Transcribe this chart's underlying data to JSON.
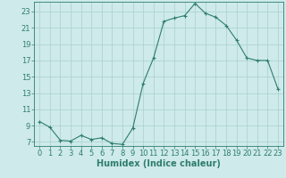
{
  "x": [
    0,
    1,
    2,
    3,
    4,
    5,
    6,
    7,
    8,
    9,
    10,
    11,
    12,
    13,
    14,
    15,
    16,
    17,
    18,
    19,
    20,
    21,
    22,
    23
  ],
  "y": [
    9.5,
    8.8,
    7.2,
    7.1,
    7.8,
    7.3,
    7.5,
    6.8,
    6.7,
    8.7,
    14.2,
    17.3,
    21.8,
    22.2,
    22.5,
    24.0,
    22.8,
    22.3,
    21.3,
    19.5,
    17.3,
    17.0,
    17.0,
    13.5
  ],
  "line_color": "#2e7d6e",
  "marker": "+",
  "marker_size": 3,
  "bg_color": "#ceeaea",
  "grid_color": "#aacfcf",
  "xlabel": "Humidex (Indice chaleur)",
  "xlim": [
    -0.5,
    23.5
  ],
  "ylim": [
    6.5,
    24.2
  ],
  "yticks": [
    7,
    9,
    11,
    13,
    15,
    17,
    19,
    21,
    23
  ],
  "xticks": [
    0,
    1,
    2,
    3,
    4,
    5,
    6,
    7,
    8,
    9,
    10,
    11,
    12,
    13,
    14,
    15,
    16,
    17,
    18,
    19,
    20,
    21,
    22,
    23
  ],
  "tick_color": "#2e7d6e",
  "label_color": "#2e7d6e",
  "axis_color": "#2e7d6e",
  "xlabel_fontsize": 7,
  "tick_fontsize": 6
}
